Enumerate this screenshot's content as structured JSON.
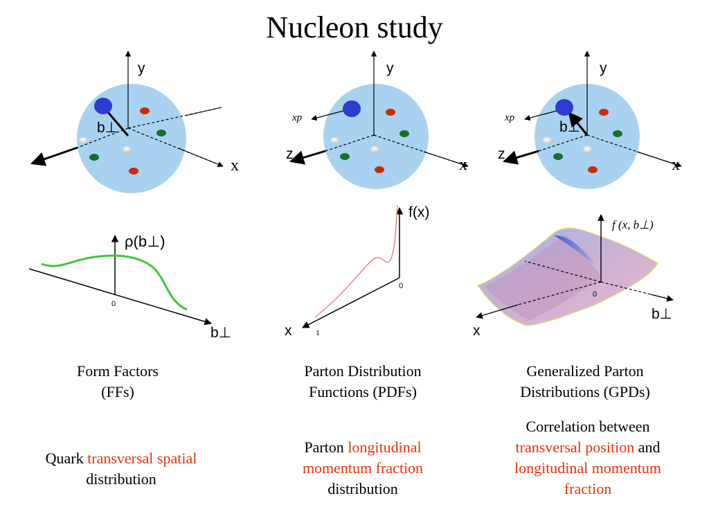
{
  "title": "Nucleon study",
  "axis_labels": {
    "y": "y",
    "x": "x",
    "z": "z",
    "xp": "xp",
    "b_perp": "b⊥",
    "rho": "ρ(b⊥)",
    "fx": "f(x)",
    "fxb": "f (x, b⊥)",
    "zero": "0",
    "one": "1"
  },
  "columns": [
    {
      "caption_line1": "Form Factors",
      "caption_line2": "(FFs)",
      "desc_pre": "Quark ",
      "desc_red1": "transversal spatial",
      "desc_post": "distribution"
    },
    {
      "caption_line1": "Parton Distribution",
      "caption_line2": "Functions (PDFs)",
      "desc_pre": "Parton ",
      "desc_red1": "longitudinal momentum fraction",
      "desc_post": "distribution"
    },
    {
      "caption_line1": "Generalized Parton",
      "caption_line2": "Distributions (GPDs)",
      "desc_pre": "Correlation between",
      "desc_red1": "transversal position",
      "desc_mid": " and",
      "desc_red2": "longitudinal momentum fraction"
    }
  ],
  "colors": {
    "sphere": "#a9d2f0",
    "quark_blue": "#2e3bd1",
    "quark_red": "#cc2a10",
    "quark_green": "#17702a",
    "quark_white": "#dcdcdc",
    "curve_green": "#3ec43e",
    "curve_red": "#e08080",
    "text_red": "#e8320f"
  }
}
